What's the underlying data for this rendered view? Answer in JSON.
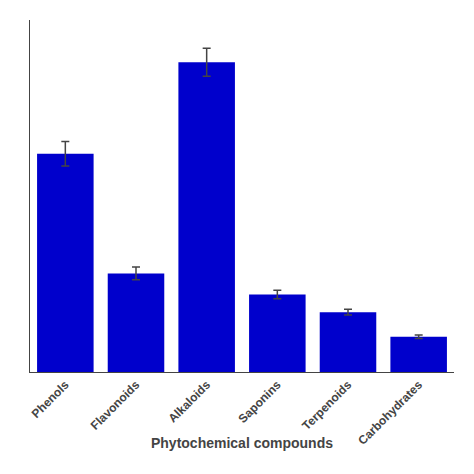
{
  "chart_data": {
    "type": "bar",
    "xlabel": "Phytochemical compounds",
    "categories": [
      "Phenols",
      "Flavonoids",
      "Alkaloids",
      "Saponins",
      "Terpenoids",
      "Carbohydrates"
    ],
    "values": [
      62,
      28,
      88,
      22,
      17,
      10
    ],
    "errors": [
      3.5,
      1.8,
      4.0,
      1.2,
      0.8,
      0.5
    ],
    "color": "#0000CC",
    "ylim": [
      0,
      100
    ],
    "tick_labels": "x",
    "grid": false
  }
}
